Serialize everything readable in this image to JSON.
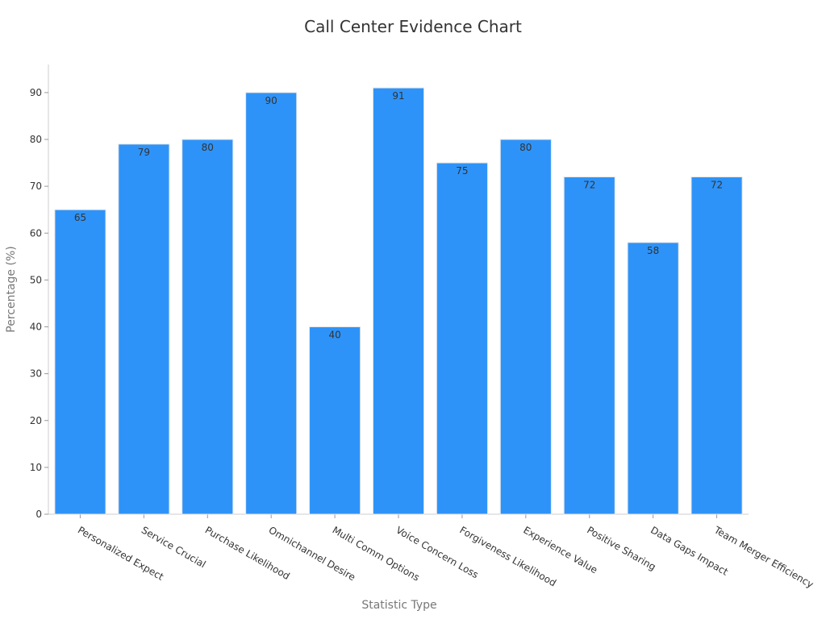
{
  "chart_data": {
    "type": "bar",
    "title": "Call Center Evidence Chart",
    "xlabel": "Statistic Type",
    "ylabel": "Percentage (%)",
    "categories": [
      "Personalized Expect",
      "Service Crucial",
      "Purchase Likelihood",
      "Omnichannel Desire",
      "Multi Comm Options",
      "Voice Concern Loss",
      "Forgiveness Likelihood",
      "Experience Value",
      "Positive Sharing",
      "Data Gaps Impact",
      "Team Merger Efficiency"
    ],
    "values": [
      65,
      79,
      80,
      90,
      40,
      91,
      75,
      80,
      72,
      58,
      72
    ],
    "ylim": [
      0,
      96
    ],
    "yticks": [
      0,
      10,
      20,
      30,
      40,
      50,
      60,
      70,
      80,
      90
    ],
    "bar_color": "#2e93f8",
    "grid": false,
    "legend": "none"
  }
}
